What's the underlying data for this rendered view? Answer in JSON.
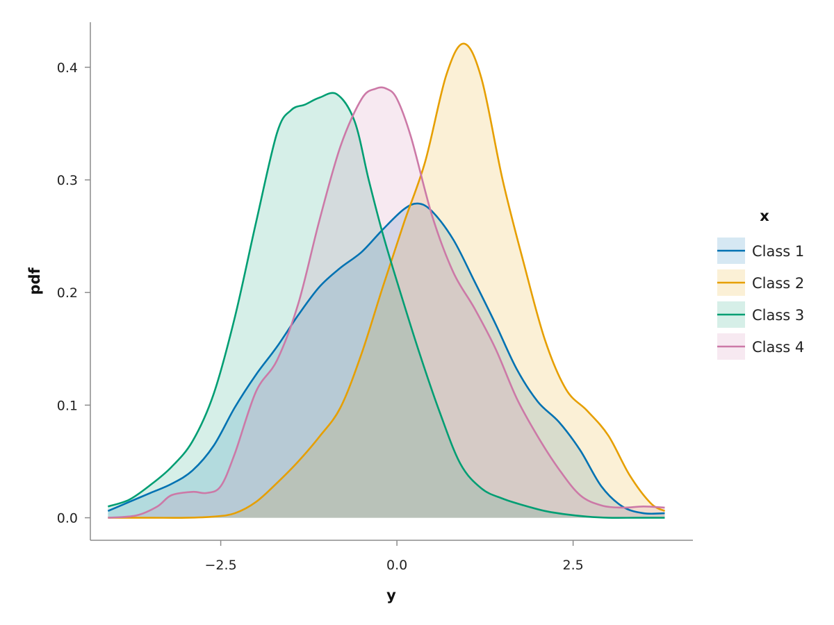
{
  "chart_data": {
    "type": "area",
    "xlabel": "y",
    "ylabel": "pdf",
    "xlim": [
      -4.35,
      4.2
    ],
    "ylim": [
      -0.02,
      0.44
    ],
    "x_ticks": [
      -2.5,
      0.0,
      2.5
    ],
    "x_tick_labels": [
      "−2.5",
      "0.0",
      "2.5"
    ],
    "y_ticks": [
      0.0,
      0.1,
      0.2,
      0.3,
      0.4
    ],
    "y_tick_labels": [
      "0.0",
      "0.1",
      "0.2",
      "0.3",
      "0.4"
    ],
    "grid": false,
    "legend": {
      "title": "x",
      "position": "right"
    },
    "series": [
      {
        "name": "Class 1",
        "color": "#0072B2",
        "x": [
          -4.1,
          -3.8,
          -3.5,
          -3.2,
          -2.9,
          -2.6,
          -2.3,
          -2.0,
          -1.7,
          -1.4,
          -1.1,
          -0.8,
          -0.5,
          -0.2,
          0.1,
          0.3,
          0.5,
          0.8,
          1.1,
          1.4,
          1.7,
          2.0,
          2.3,
          2.6,
          2.9,
          3.2,
          3.5,
          3.8
        ],
        "y": [
          0.006,
          0.014,
          0.022,
          0.03,
          0.042,
          0.064,
          0.098,
          0.127,
          0.152,
          0.18,
          0.205,
          0.222,
          0.236,
          0.256,
          0.274,
          0.279,
          0.272,
          0.247,
          0.21,
          0.172,
          0.132,
          0.103,
          0.085,
          0.06,
          0.028,
          0.01,
          0.004,
          0.004
        ]
      },
      {
        "name": "Class 2",
        "color": "#E69F00",
        "x": [
          -4.1,
          -3.5,
          -3.0,
          -2.6,
          -2.3,
          -2.0,
          -1.7,
          -1.4,
          -1.1,
          -0.8,
          -0.5,
          -0.2,
          0.1,
          0.4,
          0.7,
          0.95,
          1.2,
          1.5,
          1.8,
          2.1,
          2.4,
          2.7,
          3.0,
          3.3,
          3.6,
          3.8
        ],
        "y": [
          0.0,
          0.0,
          0.0,
          0.001,
          0.004,
          0.014,
          0.031,
          0.05,
          0.072,
          0.098,
          0.146,
          0.205,
          0.262,
          0.316,
          0.393,
          0.421,
          0.39,
          0.3,
          0.226,
          0.158,
          0.114,
          0.095,
          0.073,
          0.038,
          0.013,
          0.006
        ]
      },
      {
        "name": "Class 3",
        "color": "#009E73",
        "x": [
          -4.1,
          -3.8,
          -3.5,
          -3.2,
          -2.9,
          -2.6,
          -2.3,
          -2.0,
          -1.7,
          -1.5,
          -1.3,
          -1.1,
          -0.85,
          -0.6,
          -0.4,
          -0.2,
          0.0,
          0.3,
          0.6,
          0.9,
          1.2,
          1.5,
          1.8,
          2.1,
          2.4,
          2.7,
          3.0,
          3.4,
          3.8
        ],
        "y": [
          0.01,
          0.016,
          0.029,
          0.045,
          0.068,
          0.11,
          0.178,
          0.262,
          0.342,
          0.362,
          0.367,
          0.373,
          0.376,
          0.352,
          0.3,
          0.252,
          0.21,
          0.15,
          0.095,
          0.048,
          0.026,
          0.017,
          0.011,
          0.006,
          0.003,
          0.001,
          0.0,
          0.0,
          0.0
        ]
      },
      {
        "name": "Class 4",
        "color": "#CC79A7",
        "x": [
          -4.1,
          -3.7,
          -3.4,
          -3.2,
          -2.9,
          -2.7,
          -2.5,
          -2.3,
          -2.0,
          -1.7,
          -1.4,
          -1.1,
          -0.8,
          -0.5,
          -0.3,
          -0.15,
          0.0,
          0.2,
          0.5,
          0.8,
          1.1,
          1.4,
          1.7,
          2.0,
          2.3,
          2.6,
          2.9,
          3.2,
          3.5,
          3.8
        ],
        "y": [
          0.0,
          0.002,
          0.01,
          0.02,
          0.023,
          0.022,
          0.028,
          0.057,
          0.112,
          0.14,
          0.19,
          0.264,
          0.33,
          0.372,
          0.381,
          0.381,
          0.372,
          0.338,
          0.268,
          0.218,
          0.186,
          0.15,
          0.106,
          0.072,
          0.043,
          0.02,
          0.011,
          0.009,
          0.01,
          0.009
        ]
      }
    ]
  }
}
